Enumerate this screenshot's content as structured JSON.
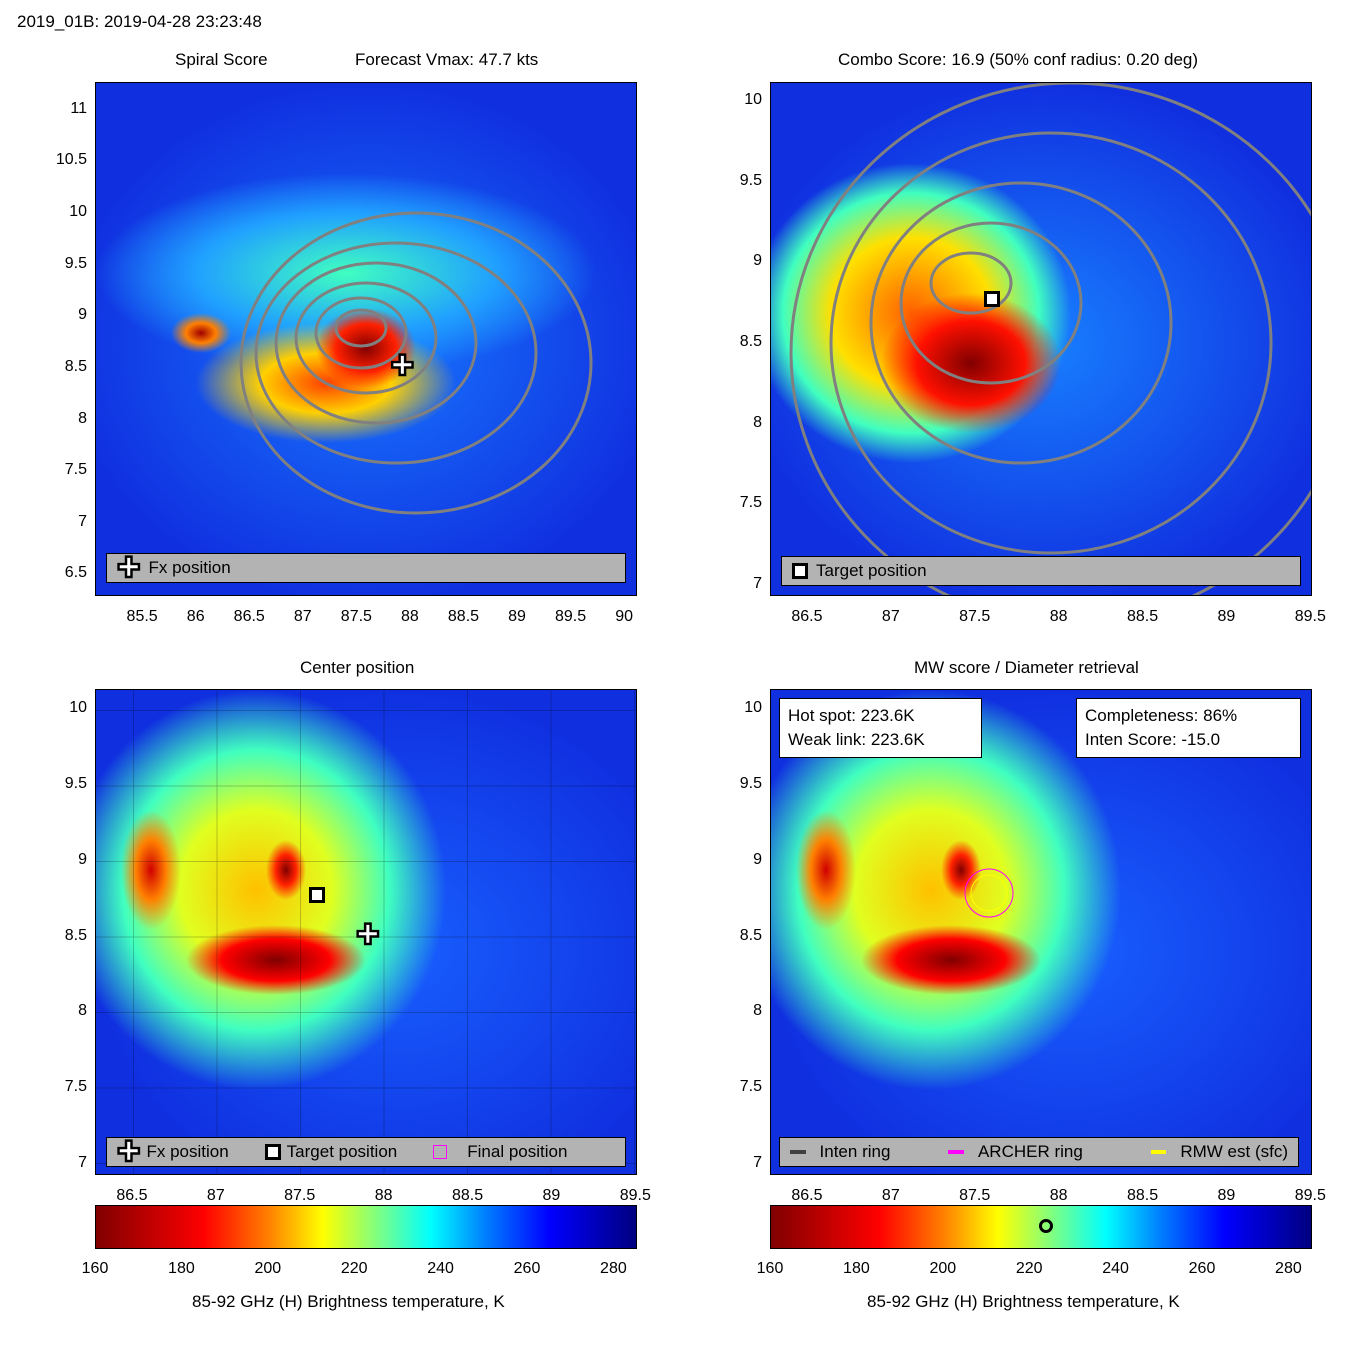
{
  "header": {
    "title": "2019_01B: 2019-04-28 23:23:48"
  },
  "panels": [
    {
      "id": "tl",
      "title_left": "Spiral Score",
      "title_right": "Forecast Vmax: 47.7 kts",
      "xlim": [
        85.06,
        90.12
      ],
      "ylim": [
        6.29,
        11.27
      ],
      "xticks": [
        "85.5",
        "86",
        "86.5",
        "87",
        "87.5",
        "88",
        "88.5",
        "89",
        "89.5",
        "90"
      ],
      "yticks": [
        "11",
        "10.5",
        "10",
        "9.5",
        "9",
        "8.5",
        "8",
        "7.5",
        "7",
        "6.5"
      ],
      "legend": [
        "Fx position"
      ],
      "markers": [
        {
          "type": "plus",
          "x": 87.92,
          "y": 8.53
        }
      ]
    },
    {
      "id": "tr",
      "title": "Combo Score: 16.9  (50% conf radius: 0.20 deg)",
      "xlim": [
        86.28,
        89.51
      ],
      "ylim": [
        6.93,
        10.12
      ],
      "xticks": [
        "86.5",
        "87",
        "87.5",
        "88",
        "88.5",
        "89",
        "89.5"
      ],
      "yticks": [
        "10",
        "9.5",
        "9",
        "8.5",
        "8",
        "7.5",
        "7"
      ],
      "legend": [
        "Target position"
      ],
      "markers": [
        {
          "type": "square",
          "x": 87.6,
          "y": 8.78
        }
      ]
    },
    {
      "id": "bl",
      "title": "Center position",
      "xlim": [
        86.28,
        89.51
      ],
      "ylim": [
        6.93,
        10.13
      ],
      "xticks": [
        "86.5",
        "87",
        "87.5",
        "88",
        "88.5",
        "89",
        "89.5"
      ],
      "yticks": [
        "10",
        "9.5",
        "9",
        "8.5",
        "8",
        "7.5",
        "7"
      ],
      "legend": [
        "Fx position",
        "Target position",
        "Final position"
      ],
      "markers": [
        {
          "type": "square",
          "x": 87.6,
          "y": 8.78
        },
        {
          "type": "plus",
          "x": 87.9,
          "y": 8.52
        }
      ]
    },
    {
      "id": "br",
      "title": "MW score / Diameter retrieval",
      "xlim": [
        86.28,
        89.51
      ],
      "ylim": [
        6.93,
        10.13
      ],
      "xticks": [
        "86.5",
        "87",
        "87.5",
        "88",
        "88.5",
        "89",
        "89.5"
      ],
      "yticks": [
        "10",
        "9.5",
        "9",
        "8.5",
        "8",
        "7.5",
        "7"
      ],
      "legend": [
        "Inten ring",
        "ARCHER ring",
        "RMW est (sfc)"
      ],
      "markers": [],
      "info_left": [
        "Hot spot: 223.6K",
        "Weak link: 223.6K"
      ],
      "info_right": [
        "Completeness: 86%",
        "Inten Score: -15.0"
      ]
    }
  ],
  "colorbar": {
    "ticks": [
      "160",
      "180",
      "200",
      "220",
      "240",
      "260",
      "280"
    ],
    "range": [
      160,
      285
    ],
    "label": "85-92 GHz (H) Brightness temperature, K",
    "hotspot_marker": 223.6
  },
  "colors": {
    "inten_ring": "#404040",
    "archer_ring": "#ff00ff",
    "rmw": "#ffff00"
  },
  "chart_data": {
    "type": "heatmap",
    "title": "2019_01B: 2019-04-28 23:23:48",
    "colorbar_label": "85-92 GHz (H) Brightness temperature, K",
    "clim": [
      160,
      285
    ]
  }
}
